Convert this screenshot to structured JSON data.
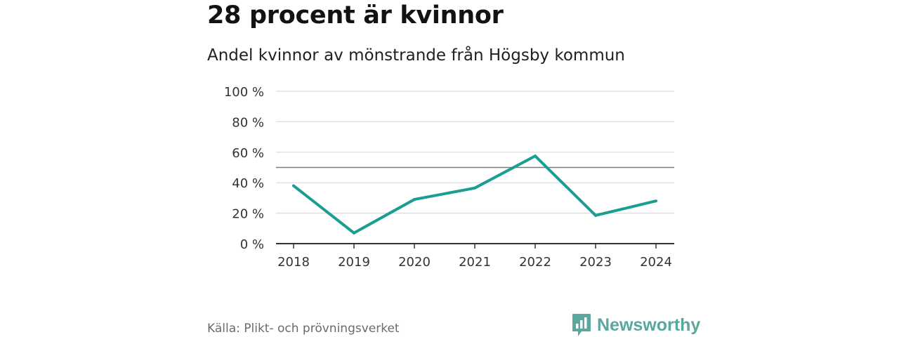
{
  "header": {
    "title": "28 procent är kvinnor",
    "subtitle": "Andel kvinnor av mönstrande från Högsby kommun"
  },
  "chart_data": {
    "type": "line",
    "title": "28 procent är kvinnor",
    "subtitle": "Andel kvinnor av mönstrande från Högsby kommun",
    "xlabel": "",
    "ylabel": "",
    "categories": [
      "2018",
      "2019",
      "2020",
      "2021",
      "2022",
      "2023",
      "2024"
    ],
    "series": [
      {
        "name": "Andel kvinnor",
        "values": [
          38,
          7,
          29,
          36.5,
          57.5,
          18.5,
          28
        ]
      }
    ],
    "reference_line": 50,
    "ylim": [
      0,
      100
    ],
    "yticks": [
      0,
      20,
      40,
      60,
      80,
      100
    ],
    "ytick_labels": [
      "0 %",
      "20 %",
      "40 %",
      "60 %",
      "80 %",
      "100 %"
    ],
    "grid": true,
    "legend": "none",
    "colors": {
      "line": "#1a9e92",
      "grid": "#dcdcdc",
      "reference": "#7a7a7a",
      "axis": "#333333"
    }
  },
  "footer": {
    "source": "Källa: Plikt- och prövningsverket",
    "brand": "Newsworthy",
    "brand_color": "#5aa79d",
    "brand_icon": "bar-chart-speech-bubble-icon"
  }
}
